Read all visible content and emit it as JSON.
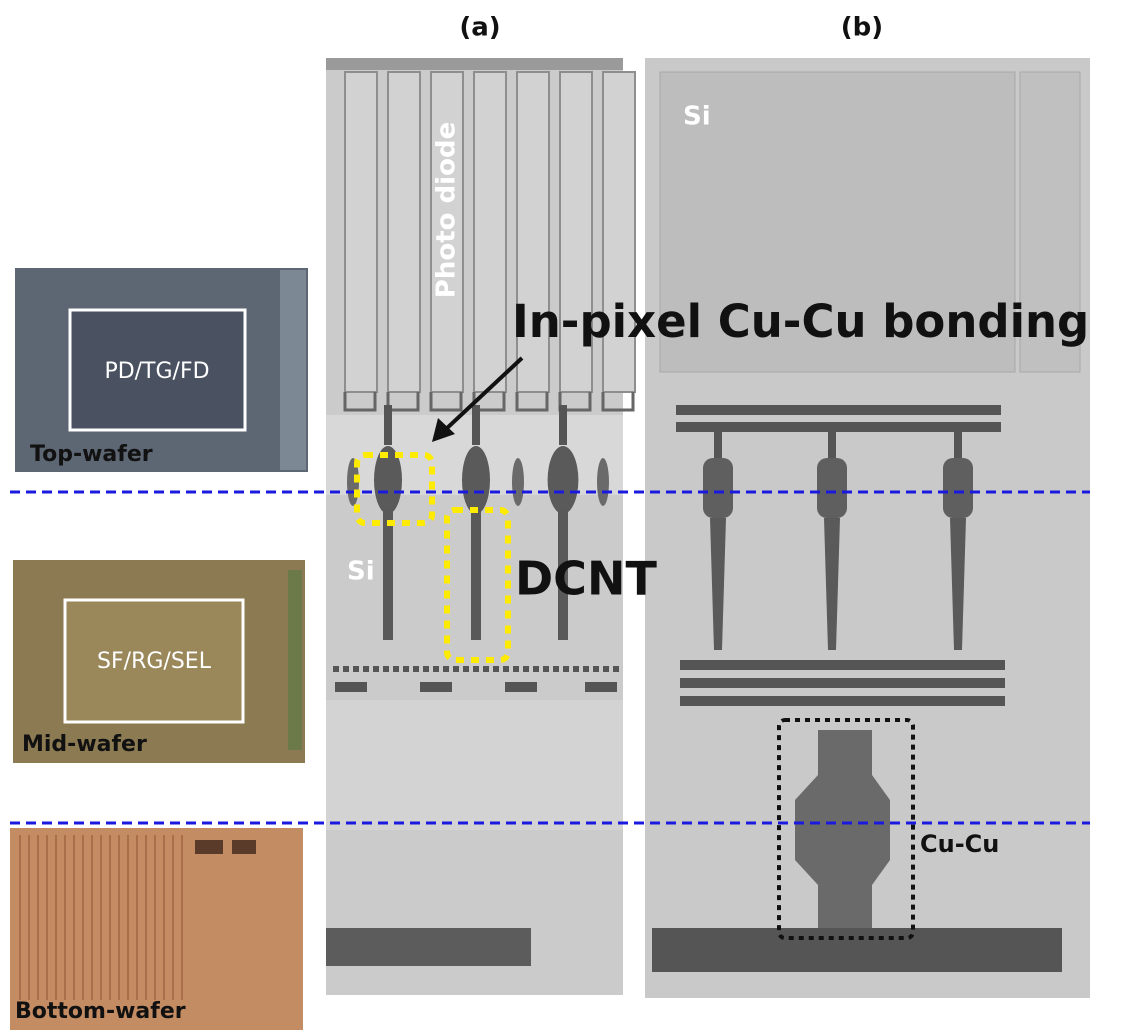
{
  "labels": {
    "panel_a": "(a)",
    "panel_b": "(b)"
  },
  "wafers": [
    {
      "name": "Top-wafer",
      "box": "PD/TG/FD"
    },
    {
      "name": "Mid-wafer",
      "box": "SF/RG/SEL"
    },
    {
      "name": "Bottom-wafer"
    }
  ],
  "panel_a": {
    "photo_diode": "Photo diode",
    "bonding": "In-pixel Cu-Cu bonding",
    "si": "Si",
    "dcnt": "DCNT"
  },
  "panel_b": {
    "si": "Si",
    "cucu": "Cu-Cu"
  }
}
